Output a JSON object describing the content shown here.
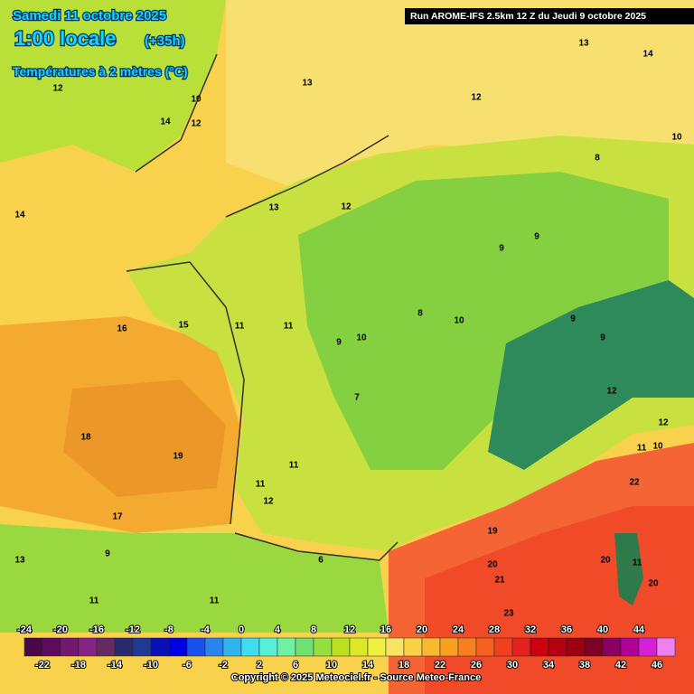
{
  "header": {
    "date": "Samedi 11 octobre 2025",
    "time": "1:00 locale",
    "lead": "(+35h)",
    "field": "Températures à 2 mètres (°C)",
    "run": "Run AROME-IFS 2.5km 12 Z du Jeudi 9 octobre 2025"
  },
  "footer": {
    "copyright": "Copyright © 2025 Meteociel.fr - Source Meteo-France"
  },
  "scale": {
    "top_labels": [
      -24,
      -20,
      -16,
      -12,
      -8,
      -4,
      0,
      4,
      8,
      12,
      16,
      20,
      24,
      28,
      32,
      36,
      40,
      44
    ],
    "bottom_labels": [
      -22,
      -18,
      -14,
      -10,
      -6,
      -2,
      2,
      6,
      10,
      14,
      18,
      22,
      26,
      30,
      34,
      38,
      42,
      46
    ],
    "colors": [
      "#4a0848",
      "#5e0a5e",
      "#721872",
      "#862486",
      "#642a64",
      "#2a2a6e",
      "#1e3a96",
      "#0a10b8",
      "#0000e6",
      "#1a50f0",
      "#2a84f0",
      "#30b4f0",
      "#40dcf0",
      "#58f0d8",
      "#70f0a4",
      "#70e070",
      "#94e040",
      "#bce020",
      "#dce824",
      "#f0f040",
      "#f8e464",
      "#f8d244",
      "#f8b830",
      "#f8a020",
      "#f88020",
      "#f86020",
      "#f04020",
      "#e42020",
      "#cc0010",
      "#b40010",
      "#9c0010",
      "#800024",
      "#8c0064",
      "#b00098",
      "#d820d8",
      "#f080f0"
    ]
  },
  "map_labels": [
    12,
    14,
    12,
    10,
    13,
    16,
    15,
    18,
    19,
    17,
    14,
    13,
    12,
    11,
    11,
    9,
    10,
    7,
    10,
    8,
    9,
    9,
    8,
    10,
    14,
    13,
    12,
    9,
    9,
    12,
    12,
    11,
    10,
    22,
    20,
    21,
    23,
    19,
    20,
    11,
    20,
    11,
    11,
    12,
    11,
    11,
    13,
    9,
    6
  ]
}
